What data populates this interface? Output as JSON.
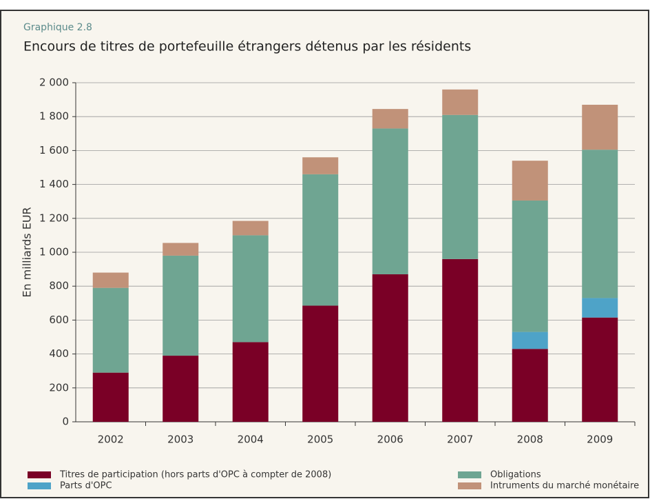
{
  "chart_data": {
    "type": "stacked-bar",
    "header": "Graphique 2.8",
    "title": "Encours de titres de portefeuille étrangers détenus par les résidents",
    "y_label": "En milliards EUR",
    "categories": [
      "2002",
      "2003",
      "2004",
      "2005",
      "2006",
      "2007",
      "2008",
      "2009"
    ],
    "series": [
      {
        "name": "Titres de participation (hors parts d'OPC à compter de 2008)",
        "color": "#7a0026",
        "values": [
          290,
          390,
          470,
          685,
          870,
          960,
          430,
          615
        ]
      },
      {
        "name": "Parts d'OPC",
        "color": "#4ea3c8",
        "values": [
          null,
          null,
          null,
          null,
          null,
          null,
          100,
          115
        ]
      },
      {
        "name": "Obligations",
        "color": "#6fa592",
        "values": [
          500,
          590,
          630,
          775,
          860,
          850,
          775,
          875
        ]
      },
      {
        "name": "Intruments du marché monétaire",
        "color": "#c19279",
        "values": [
          90,
          75,
          85,
          100,
          115,
          150,
          235,
          265
        ]
      }
    ],
    "ylim": [
      0,
      2000
    ],
    "yticks": [
      0,
      200,
      400,
      600,
      800,
      {
        "value": 1000,
        "label": "1 000"
      },
      {
        "value": 1200,
        "label": "1 200"
      },
      {
        "value": 1400,
        "label": "1 400"
      },
      {
        "value": 1600,
        "label": "1 600"
      },
      {
        "value": 1800,
        "label": "1 800"
      },
      {
        "value": 2000,
        "label": "2 000"
      }
    ],
    "grid": true
  }
}
